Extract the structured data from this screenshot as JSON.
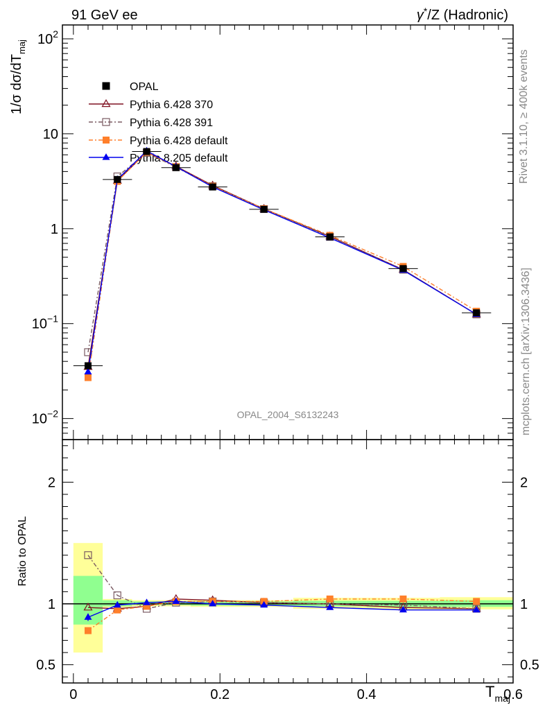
{
  "header": {
    "left_title": "91 GeV ee",
    "right_title_pre": "γ",
    "right_title_sup": "*",
    "right_title_post": "/Z (Hadronic)"
  },
  "side_text": {
    "rivet": "Rivet 3.1.10, ≥ 400k events",
    "mcplots": "mcplots.cern.ch [arXiv:1306.3436]"
  },
  "analysis_label": "OPAL_2004_S6132243",
  "colors": {
    "opal": "#000000",
    "py370": "#7f1020",
    "py391": "#7a5a62",
    "py_default": "#ff7f2a",
    "py8": "#0000ee",
    "band_inner": "#90ff90",
    "band_outer": "#ffff99"
  },
  "chart_data": [
    {
      "type": "line",
      "panel": "main",
      "yscale": "log",
      "ylabel_main": "1/σ dσ/dT",
      "ylabel_sub": "maj",
      "xlim": [
        -0.015,
        0.6
      ],
      "ylim": [
        0.006,
        140
      ],
      "y_ticks": [
        {
          "value": 0.01,
          "base": "10",
          "exp": "−2"
        },
        {
          "value": 0.1,
          "base": "10",
          "exp": "−1"
        },
        {
          "value": 1,
          "base": "1",
          "exp": ""
        },
        {
          "value": 10,
          "base": "10",
          "exp": ""
        },
        {
          "value": 100,
          "base": "10",
          "exp": "2"
        }
      ],
      "x": [
        0.02,
        0.06,
        0.1,
        0.14,
        0.19,
        0.26,
        0.35,
        0.45,
        0.55
      ],
      "series": [
        {
          "name": "OPAL",
          "key": "opal",
          "marker": "square-filled",
          "dash": "",
          "values": [
            0.036,
            3.3,
            6.5,
            4.4,
            2.75,
            1.6,
            0.82,
            0.38,
            0.13
          ]
        },
        {
          "name": "Pythia 6.428 370",
          "key": "py370",
          "marker": "triangle-open",
          "dash": "",
          "values": [
            0.035,
            3.2,
            6.4,
            4.55,
            2.85,
            1.62,
            0.83,
            0.37,
            0.125
          ]
        },
        {
          "name": "Pythia 6.428 391",
          "key": "py391",
          "marker": "square-open",
          "dash": "6,3,2,3",
          "values": [
            0.05,
            3.55,
            6.3,
            4.45,
            2.8,
            1.61,
            0.82,
            0.37,
            0.125
          ]
        },
        {
          "name": "Pythia 6.428 default",
          "key": "py_default",
          "marker": "square-filled",
          "dash": "6,3,2,3",
          "values": [
            0.027,
            3.15,
            6.4,
            4.5,
            2.8,
            1.62,
            0.85,
            0.4,
            0.135
          ]
        },
        {
          "name": "Pythia 8.205 default",
          "key": "py8",
          "marker": "triangle-filled",
          "dash": "",
          "values": [
            0.031,
            3.3,
            6.6,
            4.5,
            2.75,
            1.58,
            0.8,
            0.365,
            0.125
          ]
        }
      ],
      "opal_error_x": 0.02
    },
    {
      "type": "line",
      "panel": "ratio",
      "ylabel": "Ratio to OPAL",
      "xlabel_main": "T",
      "xlabel_sub": "maj",
      "xlim": [
        -0.015,
        0.6
      ],
      "ylim": [
        0.35,
        2.35
      ],
      "y_ticks": [
        0.5,
        1,
        2
      ],
      "y_tick_labels": [
        "0.5",
        "1",
        "2"
      ],
      "x_ticks": [
        0,
        0.2,
        0.4,
        0.6
      ],
      "x_tick_labels": [
        "0",
        "0.2",
        "0.4",
        "0.6"
      ],
      "bands": [
        {
          "x0": 0.0,
          "x1": 0.04,
          "inner": [
            0.83,
            1.23
          ],
          "outer": [
            0.6,
            1.5
          ]
        },
        {
          "x0": 0.04,
          "x1": 0.08,
          "inner": [
            0.98,
            1.03
          ],
          "outer": [
            0.97,
            1.04
          ]
        },
        {
          "x0": 0.08,
          "x1": 0.12,
          "inner": [
            0.99,
            1.02
          ],
          "outer": [
            0.98,
            1.03
          ]
        },
        {
          "x0": 0.12,
          "x1": 0.16,
          "inner": [
            0.99,
            1.02
          ],
          "outer": [
            0.98,
            1.03
          ]
        },
        {
          "x0": 0.16,
          "x1": 0.22,
          "inner": [
            0.985,
            1.02
          ],
          "outer": [
            0.975,
            1.03
          ]
        },
        {
          "x0": 0.22,
          "x1": 0.3,
          "inner": [
            0.985,
            1.02
          ],
          "outer": [
            0.975,
            1.03
          ]
        },
        {
          "x0": 0.3,
          "x1": 0.4,
          "inner": [
            0.98,
            1.025
          ],
          "outer": [
            0.96,
            1.05
          ]
        },
        {
          "x0": 0.4,
          "x1": 0.5,
          "inner": [
            0.975,
            1.025
          ],
          "outer": [
            0.955,
            1.05
          ]
        },
        {
          "x0": 0.5,
          "x1": 0.6,
          "inner": [
            0.975,
            1.03
          ],
          "outer": [
            0.955,
            1.055
          ]
        }
      ],
      "x": [
        0.02,
        0.06,
        0.1,
        0.14,
        0.19,
        0.26,
        0.35,
        0.45,
        0.55
      ],
      "series": [
        {
          "name": "Pythia 6.428 370",
          "key": "py370",
          "marker": "triangle-open",
          "dash": "",
          "values": [
            0.97,
            0.96,
            0.98,
            1.04,
            1.03,
            1.01,
            1.0,
            0.97,
            0.96
          ]
        },
        {
          "name": "Pythia 6.428 391",
          "key": "py391",
          "marker": "square-open",
          "dash": "6,3,2,3",
          "values": [
            1.4,
            1.07,
            0.96,
            1.01,
            1.02,
            1.01,
            1.0,
            0.99,
            0.96
          ]
        },
        {
          "name": "Pythia 6.428 default",
          "key": "py_default",
          "marker": "square-filled",
          "dash": "6,3,2,3",
          "values": [
            0.78,
            0.95,
            0.98,
            1.02,
            1.02,
            1.02,
            1.04,
            1.04,
            1.02
          ]
        },
        {
          "name": "Pythia 8.205 default",
          "key": "py8",
          "marker": "triangle-filled",
          "dash": "",
          "values": [
            0.89,
            0.99,
            1.01,
            1.02,
            1.0,
            0.99,
            0.97,
            0.95,
            0.95
          ],
          "first_err": 0.03
        }
      ]
    }
  ]
}
